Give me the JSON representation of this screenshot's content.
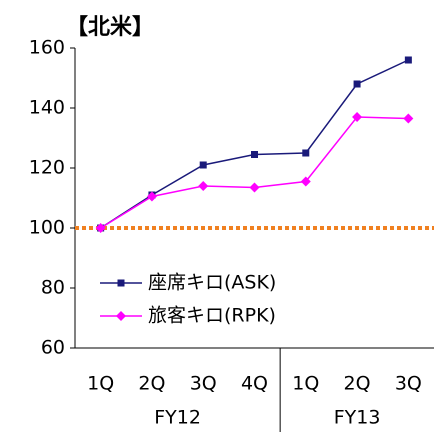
{
  "chart_data": {
    "type": "line",
    "title": "【北米】",
    "categories": [
      "1Q",
      "2Q",
      "3Q",
      "4Q",
      "1Q",
      "2Q",
      "3Q"
    ],
    "groups": [
      {
        "label": "FY12",
        "span": 4
      },
      {
        "label": "FY13",
        "span": 3
      }
    ],
    "series": [
      {
        "name": "座席キロ(ASK)",
        "color": "#1a1a7a",
        "marker": "square",
        "values": [
          100,
          111,
          121,
          124.5,
          125,
          148,
          156
        ]
      },
      {
        "name": "旅客キロ(RPK)",
        "color": "#ff00ff",
        "marker": "diamond",
        "values": [
          100,
          110.5,
          114,
          113.5,
          115.5,
          137,
          136.5
        ]
      }
    ],
    "reference_line": {
      "value": 100,
      "color": "#f08020"
    },
    "ylim": [
      60,
      160
    ],
    "yticks": [
      60,
      80,
      100,
      120,
      140,
      160
    ],
    "grid": false
  }
}
